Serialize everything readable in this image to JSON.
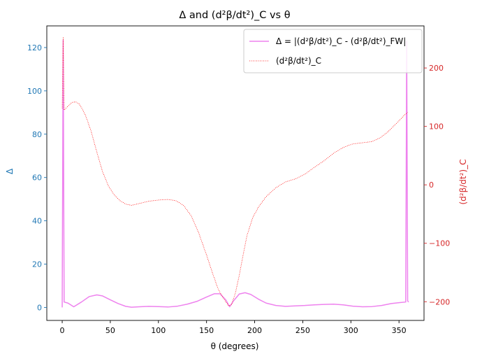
{
  "chart_data": {
    "type": "line",
    "title": "Δ and (d²β/dt²)_C vs θ",
    "xlabel": "θ (degrees)",
    "ylabel_left": "Δ",
    "ylabel_right": "(d²β/dt²)_C",
    "xlim": [
      -16,
      376
    ],
    "ylim_left": [
      -6,
      130
    ],
    "ylim_right": [
      -232,
      272
    ],
    "x_ticks": [
      0,
      50,
      100,
      150,
      200,
      250,
      300,
      350
    ],
    "y_left_ticks": [
      0,
      20,
      40,
      60,
      80,
      100,
      120
    ],
    "y_right_ticks": [
      -200,
      -100,
      0,
      100,
      200
    ],
    "legend_position": "top-right",
    "colors": {
      "delta": "#ee82ee",
      "second_derivative": "#ff0000",
      "left_axis": "#1f77b4",
      "right_axis": "#d62728"
    },
    "series": [
      {
        "name": "Δ = |(d²β/dt²)_C - (d²β/dt²)_FW|",
        "axis": "left",
        "style": "solid",
        "x": [
          0,
          1,
          2,
          6,
          12,
          20,
          28,
          36,
          42,
          50,
          58,
          66,
          72,
          80,
          90,
          100,
          110,
          120,
          130,
          140,
          150,
          158,
          164,
          170,
          174,
          178,
          184,
          190,
          196,
          204,
          212,
          222,
          232,
          242,
          252,
          262,
          272,
          282,
          292,
          302,
          312,
          322,
          332,
          342,
          350,
          357,
          358,
          359,
          360
        ],
        "y": [
          0,
          123.5,
          2.5,
          2.0,
          0.3,
          2.5,
          5.0,
          5.8,
          5.3,
          3.5,
          1.8,
          0.5,
          0.1,
          0.3,
          0.5,
          0.4,
          0.2,
          0.6,
          1.5,
          2.8,
          4.8,
          6.3,
          6.3,
          3.5,
          0.3,
          3.0,
          6.2,
          6.8,
          6.0,
          3.8,
          2.0,
          0.9,
          0.5,
          0.7,
          0.9,
          1.2,
          1.4,
          1.5,
          1.2,
          0.6,
          0.3,
          0.4,
          0.9,
          1.8,
          2.2,
          2.5,
          123,
          3,
          2.5
        ]
      },
      {
        "name": "(d²β/dt²)_C",
        "axis": "right",
        "style": "dotted",
        "x": [
          0,
          1,
          2,
          5,
          10,
          14,
          18,
          24,
          30,
          36,
          42,
          48,
          54,
          60,
          66,
          72,
          80,
          90,
          100,
          110,
          118,
          126,
          134,
          142,
          150,
          156,
          162,
          166,
          170,
          173,
          176,
          180,
          184,
          188,
          192,
          198,
          204,
          212,
          222,
          232,
          242,
          252,
          262,
          272,
          282,
          292,
          302,
          312,
          322,
          330,
          338,
          346,
          352,
          356,
          359
        ],
        "y": [
          131,
          253,
          128,
          133,
          141,
          142,
          138,
          120,
          92,
          56,
          22,
          -2,
          -17,
          -27,
          -33,
          -35,
          -32,
          -28,
          -26,
          -25,
          -27,
          -35,
          -53,
          -83,
          -120,
          -150,
          -178,
          -190,
          -200,
          -207,
          -205,
          -185,
          -155,
          -120,
          -87,
          -56,
          -38,
          -20,
          -5,
          5,
          10,
          18,
          30,
          41,
          54,
          64,
          70,
          72,
          74,
          80,
          90,
          103,
          113,
          120,
          124
        ]
      }
    ]
  }
}
